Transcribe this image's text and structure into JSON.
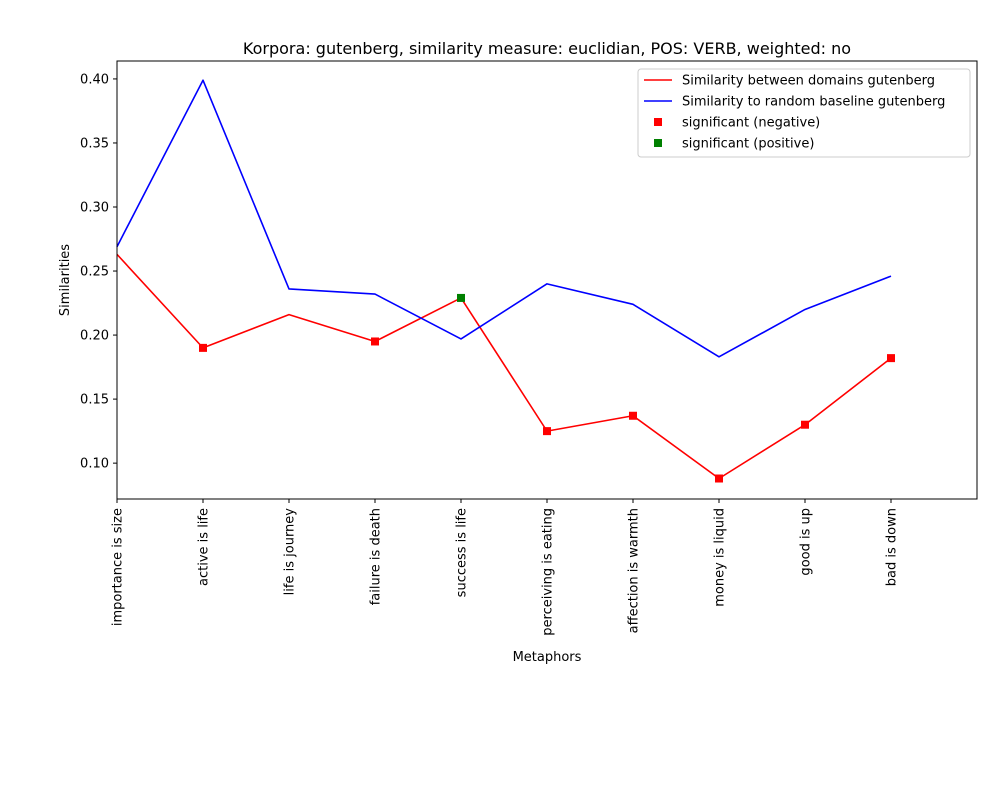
{
  "chart_data": {
    "type": "line",
    "title": "Korpora: gutenberg, similarity measure: euclidian, POS: VERB, weighted: no",
    "xlabel": "Metaphors",
    "ylabel": "Similarities",
    "categories": [
      "importance is size",
      "active is life",
      "life is journey",
      "failure is death",
      "success is life",
      "perceiving is eating",
      "affection is warmth",
      "money is liquid",
      "good is up",
      "bad is down"
    ],
    "y_ticks": [
      "0.10",
      "0.15",
      "0.20",
      "0.25",
      "0.30",
      "0.35",
      "0.40"
    ],
    "ylim": [
      0.072,
      0.414
    ],
    "xlim": [
      0,
      10
    ],
    "grid": false,
    "legend_position": "top-right",
    "series": [
      {
        "name": "Similarity between domains gutenberg",
        "color": "#ff0000",
        "values": [
          0.263,
          0.19,
          0.216,
          0.195,
          0.229,
          0.125,
          0.137,
          0.088,
          0.13,
          0.182
        ]
      },
      {
        "name": "Similarity to random baseline gutenberg",
        "color": "#0000ff",
        "values": [
          0.269,
          0.399,
          0.236,
          0.232,
          0.197,
          0.24,
          0.224,
          0.183,
          0.22,
          0.246
        ]
      }
    ],
    "markers": [
      {
        "name": "significant (negative)",
        "color": "#ff0000",
        "indices": [
          1,
          3,
          5,
          6,
          7,
          8,
          9
        ]
      },
      {
        "name": "significant (positive)",
        "color": "#008000",
        "indices": [
          4
        ]
      }
    ]
  }
}
